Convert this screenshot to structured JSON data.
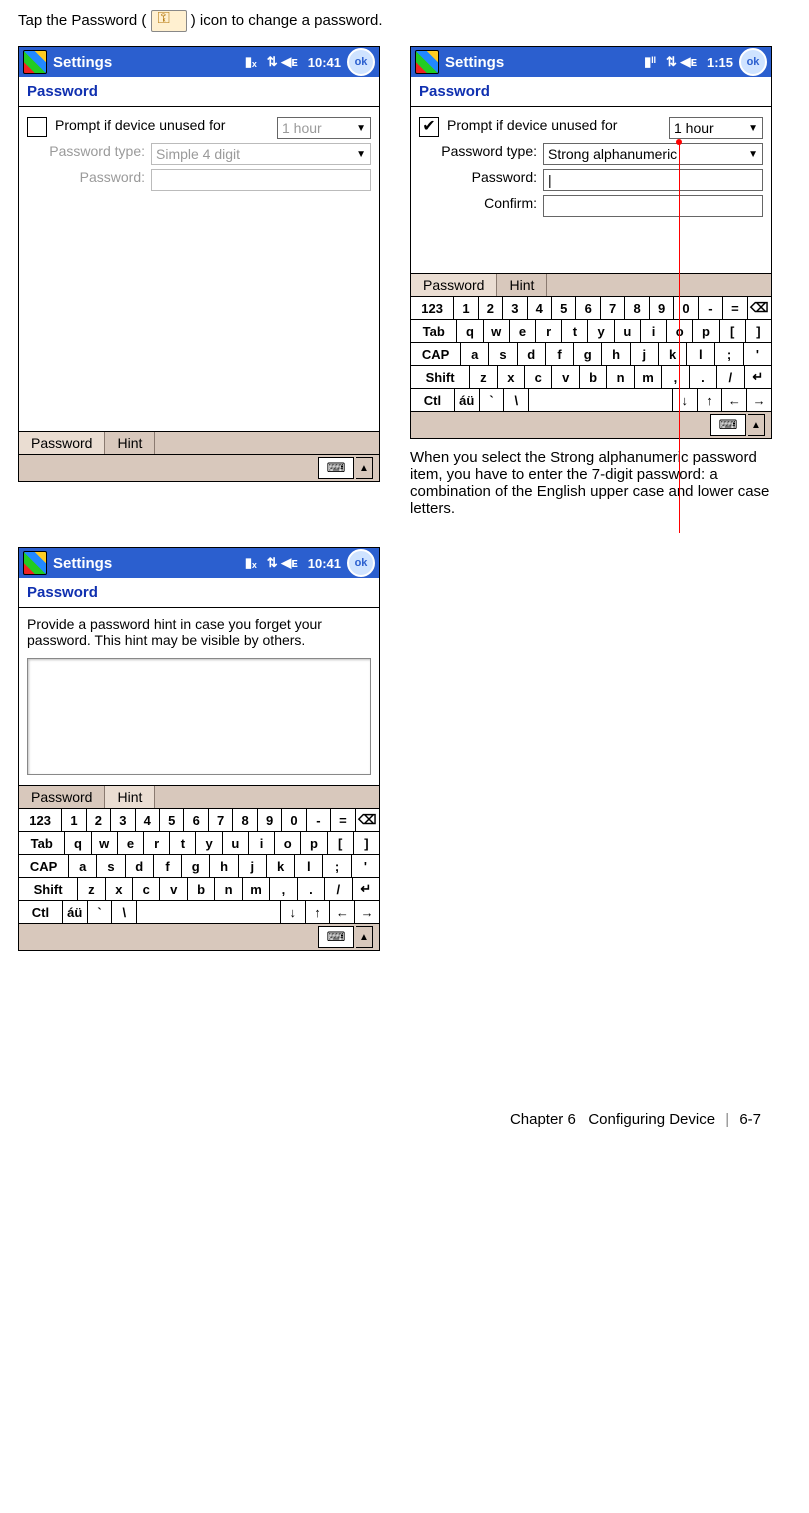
{
  "instruction_pre": "Tap the Password (",
  "instruction_post": ") icon to change a password.",
  "screens": {
    "s1": {
      "title": "Settings",
      "time": "10:41",
      "header": "Password",
      "prompt_checked": false,
      "prompt_label": "Prompt if device unused for",
      "prompt_value": "1 hour",
      "type_label": "Password type:",
      "type_value": "Simple 4 digit",
      "pwd_label": "Password:",
      "tabs": {
        "t1": "Password",
        "t2": "Hint",
        "active": "t1"
      }
    },
    "s2": {
      "title": "Settings",
      "time": "1:15",
      "header": "Password",
      "prompt_checked": true,
      "prompt_label": "Prompt if device unused for",
      "prompt_value": "1 hour",
      "type_label": "Password type:",
      "type_value": "Strong alphanumeric",
      "pwd_label": "Password:",
      "confirm_label": "Confirm:",
      "tabs": {
        "t1": "Password",
        "t2": "Hint",
        "active": "t1"
      },
      "caption": "When you select the Strong alphanumeric password item, you have to enter the 7-digit password: a combination of the English upper case and lower case letters."
    },
    "s3": {
      "title": "Settings",
      "time": "10:41",
      "header": "Password",
      "hint_text": "Provide a password hint in case you forget your password.  This hint may be visible by others.",
      "tabs": {
        "t1": "Password",
        "t2": "Hint",
        "active": "t2"
      }
    }
  },
  "keyboard": {
    "r1": [
      "123",
      "1",
      "2",
      "3",
      "4",
      "5",
      "6",
      "7",
      "8",
      "9",
      "0",
      "-",
      "=",
      "⌫"
    ],
    "r2": [
      "Tab",
      "q",
      "w",
      "e",
      "r",
      "t",
      "y",
      "u",
      "i",
      "o",
      "p",
      "[",
      "]"
    ],
    "r3": [
      "CAP",
      "a",
      "s",
      "d",
      "f",
      "g",
      "h",
      "j",
      "k",
      "l",
      ";",
      "'"
    ],
    "r4": [
      "Shift",
      "z",
      "x",
      "c",
      "v",
      "b",
      "n",
      "m",
      ",",
      ".",
      "/",
      "↵"
    ],
    "r5": [
      "Ctl",
      "áü",
      "`",
      "\\",
      " ",
      "↓",
      "↑",
      "←",
      "→"
    ]
  },
  "footer": {
    "chapter": "Chapter 6",
    "title": "Configuring Device",
    "page": "6-7"
  },
  "ok_label": "ok",
  "signal_glyph_a": "⇅ ◀ᴇ",
  "signal_glyph_b": "▮ₓ"
}
